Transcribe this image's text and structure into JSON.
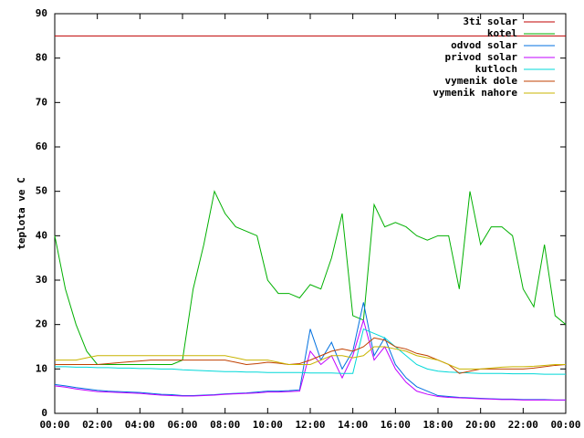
{
  "chart_data": {
    "type": "line",
    "ylabel": "teplota ve C",
    "x": [
      0,
      0.5,
      1,
      1.5,
      2,
      2.5,
      3,
      3.5,
      4,
      4.5,
      5,
      5.5,
      6,
      6.5,
      7,
      7.5,
      8,
      8.5,
      9,
      9.5,
      10,
      10.5,
      11,
      11.5,
      12,
      12.5,
      13,
      13.5,
      14,
      14.5,
      15,
      15.5,
      16,
      16.5,
      17,
      17.5,
      18,
      18.5,
      19,
      19.5,
      20,
      20.5,
      21,
      21.5,
      22,
      22.5,
      23,
      23.5,
      24
    ],
    "xlim": [
      0,
      24
    ],
    "xticks": [
      {
        "value": 0,
        "label": "00:00"
      },
      {
        "value": 2,
        "label": "02:00"
      },
      {
        "value": 4,
        "label": "04:00"
      },
      {
        "value": 6,
        "label": "06:00"
      },
      {
        "value": 8,
        "label": "08:00"
      },
      {
        "value": 10,
        "label": "10:00"
      },
      {
        "value": 12,
        "label": "12:00"
      },
      {
        "value": 14,
        "label": "14:00"
      },
      {
        "value": 16,
        "label": "16:00"
      },
      {
        "value": 18,
        "label": "18:00"
      },
      {
        "value": 20,
        "label": "20:00"
      },
      {
        "value": 22,
        "label": "22:00"
      },
      {
        "value": 24,
        "label": "00:00"
      }
    ],
    "ylim": [
      0,
      90
    ],
    "yticks": [
      0,
      10,
      20,
      30,
      40,
      50,
      60,
      70,
      80,
      90
    ],
    "legend": "top-right",
    "series": [
      {
        "name": "3ti solar",
        "color": "#c00000",
        "values": [
          85,
          85,
          85,
          85,
          85,
          85,
          85,
          85,
          85,
          85,
          85,
          85,
          85,
          85,
          85,
          85,
          85,
          85,
          85,
          85,
          85,
          85,
          85,
          85,
          85,
          85,
          85,
          85,
          85,
          85,
          85,
          85,
          85,
          85,
          85,
          85,
          85,
          85,
          85,
          85,
          85,
          85,
          85,
          85,
          85,
          85,
          85,
          85,
          85
        ]
      },
      {
        "name": "kotel",
        "color": "#00b000",
        "values": [
          40,
          28,
          20,
          14,
          11,
          11,
          11,
          11,
          11,
          11,
          11,
          11,
          12,
          28,
          38,
          50,
          45,
          42,
          41,
          40,
          30,
          27,
          27,
          26,
          29,
          28,
          35,
          45,
          22,
          21,
          47,
          42,
          43,
          42,
          40,
          39,
          40,
          40,
          28,
          50,
          38,
          42,
          42,
          40,
          28,
          24,
          38,
          22,
          20
        ]
      },
      {
        "name": "odvod solar",
        "color": "#0070e0",
        "values": [
          6.5,
          6.2,
          5.8,
          5.5,
          5.2,
          5,
          4.9,
          4.8,
          4.7,
          4.5,
          4.3,
          4.2,
          4,
          4,
          4.1,
          4.2,
          4.4,
          4.5,
          4.6,
          4.8,
          5,
          5,
          5.1,
          5.3,
          19,
          12,
          16,
          10,
          14,
          25,
          13,
          17,
          11,
          8,
          6,
          5,
          4,
          3.8,
          3.6,
          3.5,
          3.4,
          3.3,
          3.2,
          3.2,
          3.1,
          3.1,
          3.1,
          3,
          3
        ]
      },
      {
        "name": "privod solar",
        "color": "#c000ff",
        "values": [
          6.2,
          5.9,
          5.5,
          5.2,
          4.9,
          4.8,
          4.7,
          4.6,
          4.5,
          4.3,
          4.1,
          4,
          3.9,
          3.9,
          4,
          4.1,
          4.3,
          4.4,
          4.5,
          4.6,
          4.8,
          4.8,
          4.9,
          5,
          14,
          11,
          13,
          8,
          13,
          21,
          12,
          15,
          10,
          7,
          5,
          4.3,
          3.8,
          3.6,
          3.5,
          3.4,
          3.3,
          3.2,
          3.1,
          3.1,
          3,
          3,
          3,
          3,
          3
        ]
      },
      {
        "name": "kutloch",
        "color": "#00d8d8",
        "values": [
          10.5,
          10.5,
          10.4,
          10.4,
          10.3,
          10.3,
          10.2,
          10.2,
          10.1,
          10.1,
          10,
          10,
          9.8,
          9.7,
          9.6,
          9.5,
          9.4,
          9.4,
          9.3,
          9.3,
          9.2,
          9.2,
          9.2,
          9.2,
          9.1,
          9.1,
          9.1,
          9,
          9,
          19,
          18,
          17,
          15,
          13,
          11,
          10,
          9.5,
          9.3,
          9.2,
          9.1,
          9,
          9,
          9,
          8.9,
          8.9,
          8.9,
          8.8,
          8.8,
          8.8
        ]
      },
      {
        "name": "vymenik dole",
        "color": "#c04000",
        "values": [
          11,
          11,
          11,
          11,
          11,
          11.2,
          11.4,
          11.6,
          11.8,
          12,
          12,
          12,
          12,
          12,
          12,
          12,
          12,
          11.5,
          11,
          11.2,
          11.5,
          11.3,
          11,
          11.2,
          12,
          13,
          14,
          14.5,
          14,
          15,
          17,
          16.5,
          15,
          14.5,
          13.5,
          13,
          12,
          11,
          9,
          9.5,
          10,
          10,
          10,
          10,
          10,
          10.2,
          10.5,
          10.8,
          11
        ]
      },
      {
        "name": "vymenik nahore",
        "color": "#c8b400",
        "values": [
          12,
          12,
          12,
          12.5,
          13,
          13,
          13,
          13,
          13,
          13,
          13,
          13,
          13,
          13,
          13,
          13,
          13,
          12.5,
          12,
          12,
          12,
          11.5,
          11,
          11,
          11,
          12,
          13,
          13,
          12.5,
          13,
          15,
          15,
          14.5,
          14,
          13,
          12.5,
          12,
          11,
          10,
          10,
          10,
          10.2,
          10.4,
          10.5,
          10.5,
          10.6,
          10.8,
          11,
          11
        ]
      }
    ]
  }
}
